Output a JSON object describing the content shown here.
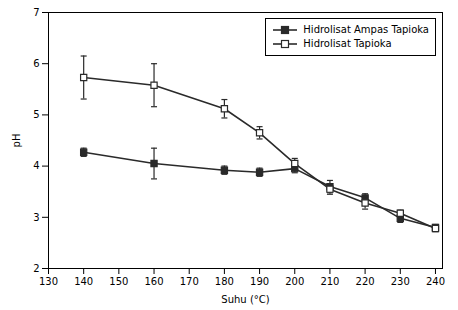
{
  "chart_data": {
    "type": "line",
    "x": [
      140,
      160,
      180,
      190,
      200,
      210,
      220,
      230,
      240
    ],
    "series": [
      {
        "name": "Hidrolisat Ampas Tapioka",
        "color": "#2a2a2a",
        "marker": "square",
        "values": [
          4.27,
          4.05,
          3.92,
          3.88,
          3.95,
          3.6,
          3.38,
          2.98,
          2.8
        ],
        "yerr": [
          0.08,
          0.3,
          0.08,
          0.08,
          0.08,
          0.12,
          0.08,
          0.08,
          0.06
        ]
      },
      {
        "name": "Hidrolisat Tapioka",
        "color": "#2a2a2a",
        "marker": "open square",
        "values": [
          5.73,
          5.58,
          5.12,
          4.65,
          4.05,
          3.55,
          3.28,
          3.08,
          2.78
        ],
        "yerr": [
          0.42,
          0.42,
          0.18,
          0.12,
          0.1,
          0.1,
          0.12,
          0.06,
          0.06
        ]
      }
    ],
    "xlabel": "Suhu (°C)",
    "ylabel": "pH",
    "xlim": [
      130,
      242
    ],
    "ylim": [
      2,
      7
    ],
    "xticks": [
      130,
      140,
      150,
      160,
      170,
      180,
      190,
      200,
      210,
      220,
      230,
      240
    ],
    "yticks": [
      2,
      3,
      4,
      5,
      6,
      7
    ],
    "legend": "upper right"
  }
}
